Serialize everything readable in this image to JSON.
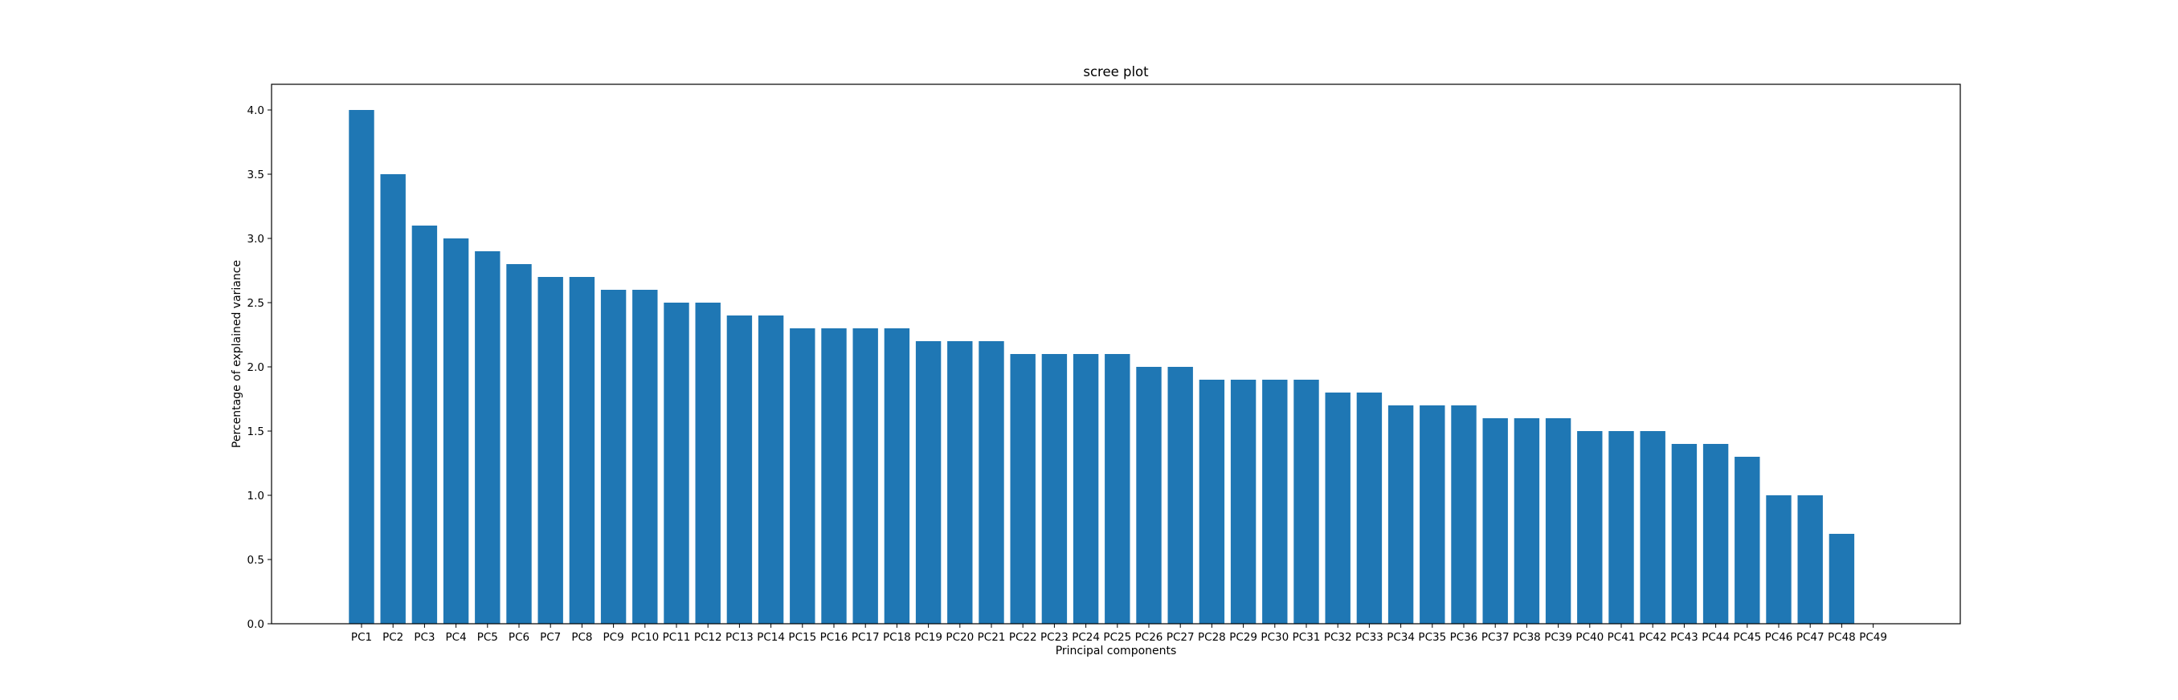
{
  "chart_data": {
    "type": "bar",
    "title": "scree plot",
    "xlabel": "Principal components",
    "ylabel": "Percentage of explained variance",
    "ylim": [
      0,
      4.2
    ],
    "yticks": [
      "0.0",
      "0.5",
      "1.0",
      "1.5",
      "2.0",
      "2.5",
      "3.0",
      "3.5",
      "4.0"
    ],
    "grid": false,
    "bar_color": "#1f77b4",
    "categories": [
      "PC1",
      "PC2",
      "PC3",
      "PC4",
      "PC5",
      "PC6",
      "PC7",
      "PC8",
      "PC9",
      "PC10",
      "PC11",
      "PC12",
      "PC13",
      "PC14",
      "PC15",
      "PC16",
      "PC17",
      "PC18",
      "PC19",
      "PC20",
      "PC21",
      "PC22",
      "PC23",
      "PC24",
      "PC25",
      "PC26",
      "PC27",
      "PC28",
      "PC29",
      "PC30",
      "PC31",
      "PC32",
      "PC33",
      "PC34",
      "PC35",
      "PC36",
      "PC37",
      "PC38",
      "PC39",
      "PC40",
      "PC41",
      "PC42",
      "PC43",
      "PC44",
      "PC45",
      "PC46",
      "PC47",
      "PC48",
      "PC49"
    ],
    "values": [
      4.0,
      3.5,
      3.1,
      3.0,
      2.9,
      2.8,
      2.7,
      2.7,
      2.6,
      2.6,
      2.5,
      2.5,
      2.4,
      2.4,
      2.3,
      2.3,
      2.3,
      2.3,
      2.2,
      2.2,
      2.2,
      2.1,
      2.1,
      2.1,
      2.1,
      2.0,
      2.0,
      1.9,
      1.9,
      1.9,
      1.9,
      1.8,
      1.8,
      1.7,
      1.7,
      1.7,
      1.6,
      1.6,
      1.6,
      1.5,
      1.5,
      1.5,
      1.4,
      1.4,
      1.3,
      1.0,
      1.0,
      0.7,
      0.0
    ]
  }
}
